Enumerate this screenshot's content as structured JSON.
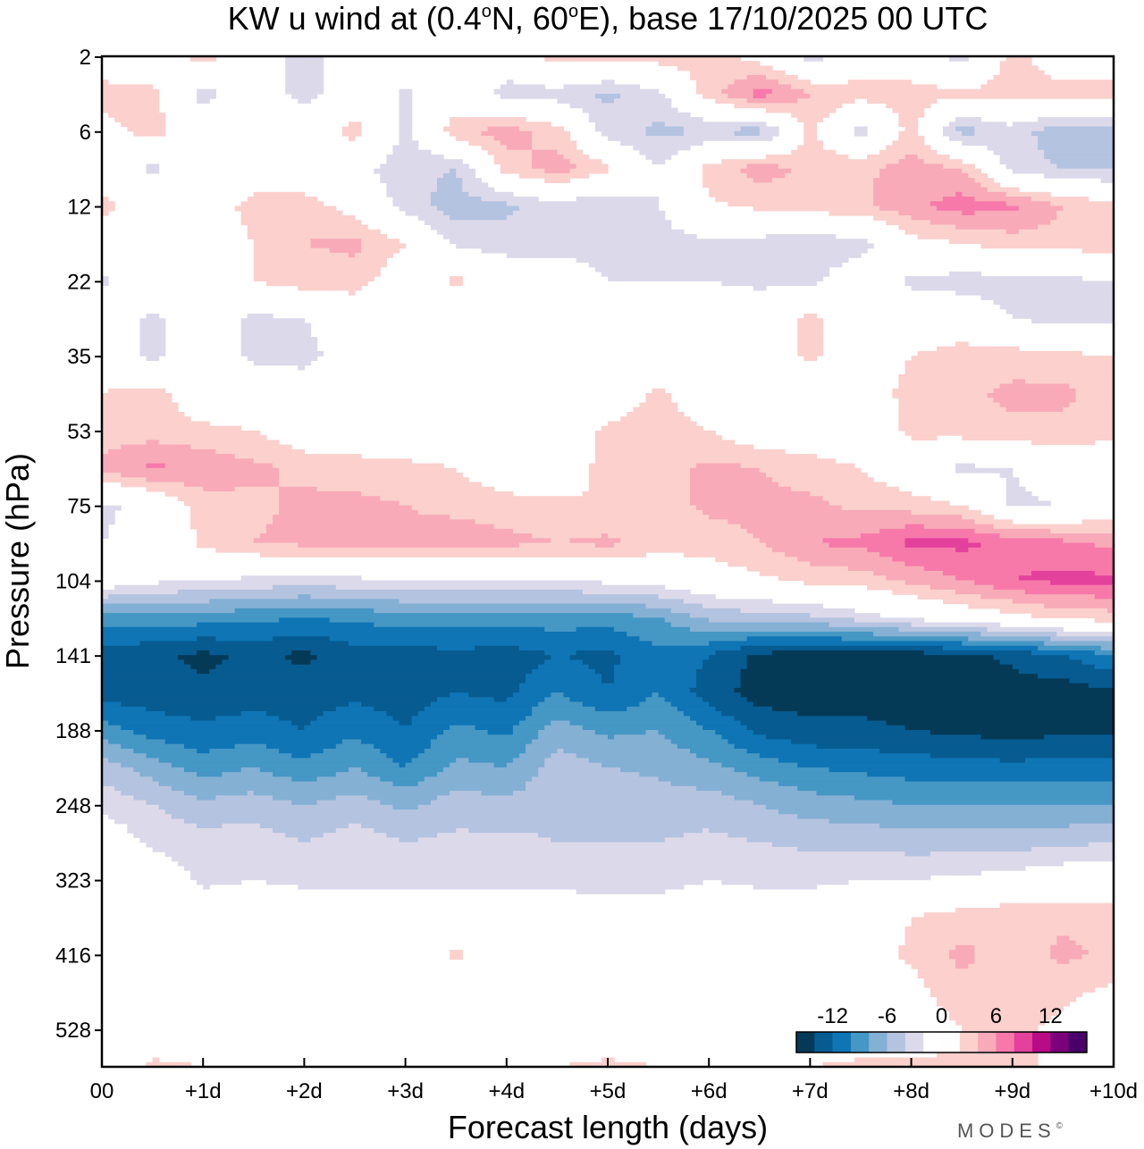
{
  "chart_data": {
    "type": "heatmap",
    "subtype": "filled-contour",
    "title": "KW u wind at (0.4°N, 60°E),  base 17/10/2025  00 UTC",
    "title_parts": {
      "prefix": "KW u wind at (0.4",
      "lat_hemi": "N, 60",
      "lon_hemi": "E),  base 17/10/2025  00 UTC",
      "degree": "o"
    },
    "xlabel": "Forecast length (days)",
    "ylabel": "Pressure (hPa)",
    "x_ticks": [
      "00",
      "+1d",
      "+2d",
      "+3d",
      "+4d",
      "+5d",
      "+6d",
      "+7d",
      "+8d",
      "+9d",
      "+10d"
    ],
    "xlim": [
      0,
      10
    ],
    "y_ticks": [
      "2",
      "6",
      "12",
      "22",
      "35",
      "53",
      "75",
      "104",
      "141",
      "188",
      "248",
      "323",
      "416",
      "528"
    ],
    "y_axis_note": "pressure levels on model-level index axis, top 2 hPa to bottom below 528 hPa",
    "grid": false,
    "x": [
      0,
      0.5,
      1,
      1.5,
      2,
      2.5,
      3,
      3.5,
      4,
      4.5,
      5,
      5.5,
      6,
      6.5,
      7,
      7.5,
      8,
      8.5,
      9,
      9.5,
      10
    ],
    "level_index": [
      0,
      1,
      2,
      3,
      4,
      5,
      6,
      7,
      8,
      9,
      10,
      11,
      12,
      13,
      14,
      15,
      16,
      17,
      18,
      19,
      20,
      21,
      22,
      23,
      24,
      25,
      26,
      27
    ],
    "u_wind_ms": [
      [
        0,
        0,
        3,
        0,
        -3,
        0,
        0,
        0,
        0,
        3,
        3,
        3,
        3,
        1,
        -3,
        0,
        0,
        -3,
        3,
        0,
        0
      ],
      [
        3,
        2.5,
        -3,
        0,
        -3,
        0,
        -2.5,
        0,
        -3,
        -3,
        -4.5,
        -2.5,
        3,
        7,
        4,
        3,
        3,
        2.5,
        3,
        3,
        3
      ],
      [
        1,
        3,
        0,
        0,
        0,
        3,
        -2.5,
        3.5,
        5,
        3,
        -3,
        -4.5,
        -4,
        -5,
        2.5,
        -3,
        3,
        -5,
        -3,
        -5.5,
        -5
      ],
      [
        0,
        -2.5,
        0,
        0,
        0,
        -1,
        -3.5,
        -4,
        3,
        5,
        2.5,
        -2,
        3,
        5,
        3.5,
        3.5,
        5,
        4,
        -3,
        -4,
        -4.5
      ],
      [
        3,
        0,
        0,
        3,
        3,
        1,
        -3,
        -5,
        -4.5,
        -3,
        -4,
        -2,
        1.5,
        2.5,
        3,
        3.5,
        5.5,
        7,
        6.5,
        4,
        3
      ],
      [
        0,
        0,
        0,
        2,
        4,
        4.5,
        2,
        -2.5,
        -3,
        -3,
        -3,
        -3,
        -2.5,
        -3,
        -3.5,
        -3,
        1,
        2,
        3,
        3,
        3
      ],
      [
        -2.5,
        0,
        0,
        2,
        3,
        3,
        0,
        2.5,
        0,
        0,
        -2,
        -2,
        -2,
        -2.5,
        -2.5,
        0,
        -2.5,
        -3,
        -3,
        -2.5,
        -2
      ],
      [
        0,
        -2.5,
        0,
        -2.5,
        -2,
        0,
        0,
        0,
        0,
        0,
        0,
        0,
        0,
        0,
        2.5,
        0,
        0,
        0,
        -2,
        -3,
        -2.5
      ],
      [
        0,
        -2.5,
        0,
        -2.5,
        -3,
        0,
        0,
        0,
        0,
        0,
        0,
        0,
        0,
        0,
        2.5,
        0,
        2,
        3,
        3,
        2.5,
        2
      ],
      [
        2,
        3,
        0,
        0,
        0,
        0,
        0,
        0,
        0,
        0,
        0,
        2.5,
        0,
        0,
        0,
        0,
        3,
        3.5,
        4.5,
        4.5,
        3
      ],
      [
        3,
        3,
        2.5,
        2,
        0,
        0,
        0,
        0,
        0,
        0,
        2.5,
        3,
        2,
        0,
        0,
        0,
        2.5,
        3,
        3.5,
        3.5,
        2.5
      ],
      [
        4.5,
        6.5,
        5.5,
        4.5,
        3.5,
        3,
        2.5,
        2,
        0,
        0,
        3,
        3,
        4.5,
        4,
        3,
        2,
        0,
        -2.5,
        -2,
        0,
        0
      ],
      [
        -2.5,
        -1,
        3,
        3.5,
        4.5,
        4.5,
        4,
        3.5,
        3,
        2.5,
        2,
        3,
        4.5,
        4.5,
        4.5,
        3.5,
        3,
        2,
        -2.5,
        -2,
        0
      ],
      [
        -2,
        -1,
        2.5,
        4,
        4.5,
        4.5,
        4.5,
        5,
        4.5,
        4,
        4.5,
        3,
        3,
        4,
        6,
        6.5,
        8.5,
        8.5,
        7.5,
        6.5,
        5.5
      ],
      [
        0,
        -1.5,
        -2,
        -2.5,
        -3,
        -2.5,
        -2,
        -2,
        -2,
        -2,
        -1.5,
        -1,
        0.5,
        1.5,
        2.5,
        3,
        4.5,
        6,
        8,
        8.5,
        8.5
      ],
      [
        -9,
        -9,
        -9,
        -9.5,
        -10,
        -9.5,
        -9,
        -9,
        -9,
        -9,
        -9,
        -8,
        -5.5,
        -5,
        -4.5,
        -3,
        -1.5,
        0,
        1,
        2.5,
        3
      ],
      [
        -13,
        -13.5,
        -14.5,
        -13.5,
        -14.5,
        -13,
        -13,
        -12.5,
        -13,
        -12,
        -12.5,
        -10.5,
        -12,
        -14.5,
        -15,
        -15,
        -15,
        -14.5,
        -13.5,
        -12,
        -10
      ],
      [
        -13,
        -13,
        -13.5,
        -13,
        -13,
        -12.5,
        -13,
        -12,
        -12.5,
        -10,
        -12,
        -10,
        -13,
        -15,
        -15,
        -15,
        -15,
        -15,
        -15,
        -15,
        -14.5
      ],
      [
        -9,
        -11,
        -11.5,
        -11,
        -12,
        -10.5,
        -12,
        -9.5,
        -10.5,
        -7,
        -8.5,
        -8,
        -10,
        -12.5,
        -13.5,
        -13.5,
        -14,
        -14.5,
        -15,
        -14.5,
        -14.5
      ],
      [
        -5,
        -7,
        -9,
        -8,
        -9.5,
        -8,
        -10,
        -7.5,
        -8,
        -5,
        -6,
        -6.5,
        -7.5,
        -9,
        -10,
        -10.5,
        -11,
        -11,
        -11.5,
        -11,
        -11
      ],
      [
        -2.5,
        -4,
        -5.5,
        -5,
        -6,
        -5,
        -6.5,
        -5,
        -5.5,
        -4.5,
        -4.5,
        -5,
        -5,
        -6,
        -7,
        -7.5,
        -8,
        -8,
        -8,
        -8,
        -8
      ],
      [
        0,
        -2.5,
        -3,
        -3,
        -4,
        -3,
        -4,
        -3.5,
        -3.5,
        -4,
        -4,
        -4,
        -3.5,
        -4,
        -4.5,
        -4.5,
        -5,
        -5,
        -5,
        -4.5,
        -4
      ],
      [
        0,
        0,
        -2.5,
        -2,
        -2.5,
        -2.5,
        -2.5,
        -2.5,
        -2.5,
        -2.5,
        -3.5,
        -3,
        -2,
        -2.5,
        -2.5,
        -2,
        -2,
        -1.5,
        -1,
        0,
        0
      ],
      [
        0,
        0,
        0,
        0,
        0,
        0,
        0,
        0,
        0,
        0,
        0,
        0,
        0,
        0,
        0,
        0,
        2,
        3,
        3.5,
        3.5,
        3
      ],
      [
        0,
        0,
        0,
        0,
        0,
        0,
        0,
        2.5,
        0,
        0,
        0,
        0,
        0,
        0,
        0,
        0.5,
        2.5,
        4.5,
        3,
        4.5,
        3.5
      ],
      [
        0,
        0,
        0,
        0,
        0,
        0,
        0,
        0,
        0,
        0,
        0,
        0,
        0,
        0,
        0,
        0,
        1,
        3.5,
        2.5,
        2.5,
        1.5
      ],
      [
        0,
        0,
        0,
        0,
        0,
        0,
        0,
        0,
        0,
        0,
        0,
        0,
        0,
        0,
        0,
        0,
        0,
        2,
        2.5,
        1.5,
        0
      ],
      [
        0,
        2.5,
        2,
        2,
        2,
        0,
        0,
        0,
        0,
        2,
        2.5,
        2,
        2,
        0,
        2,
        2.5,
        2.5,
        2.5,
        2.5,
        1.5,
        1
      ]
    ],
    "colorbar": {
      "ticks": [
        "-12",
        "-6",
        "0",
        "6",
        "12"
      ],
      "range": [
        -16,
        16
      ],
      "step": 2,
      "colors": [
        "#053a57",
        "#065b91",
        "#0f75b4",
        "#4597c4",
        "#84b0d4",
        "#b4c3df",
        "#dcd9ea",
        "#ffffff",
        "#fffeff",
        "#fbd0cd",
        "#f8aab8",
        "#f779a9",
        "#e3419b",
        "#b80b86",
        "#7a017a",
        "#4a006b"
      ],
      "placement": "bottom-right"
    }
  },
  "branding": {
    "logo_text": "MODES",
    "logo_mark": "©"
  }
}
